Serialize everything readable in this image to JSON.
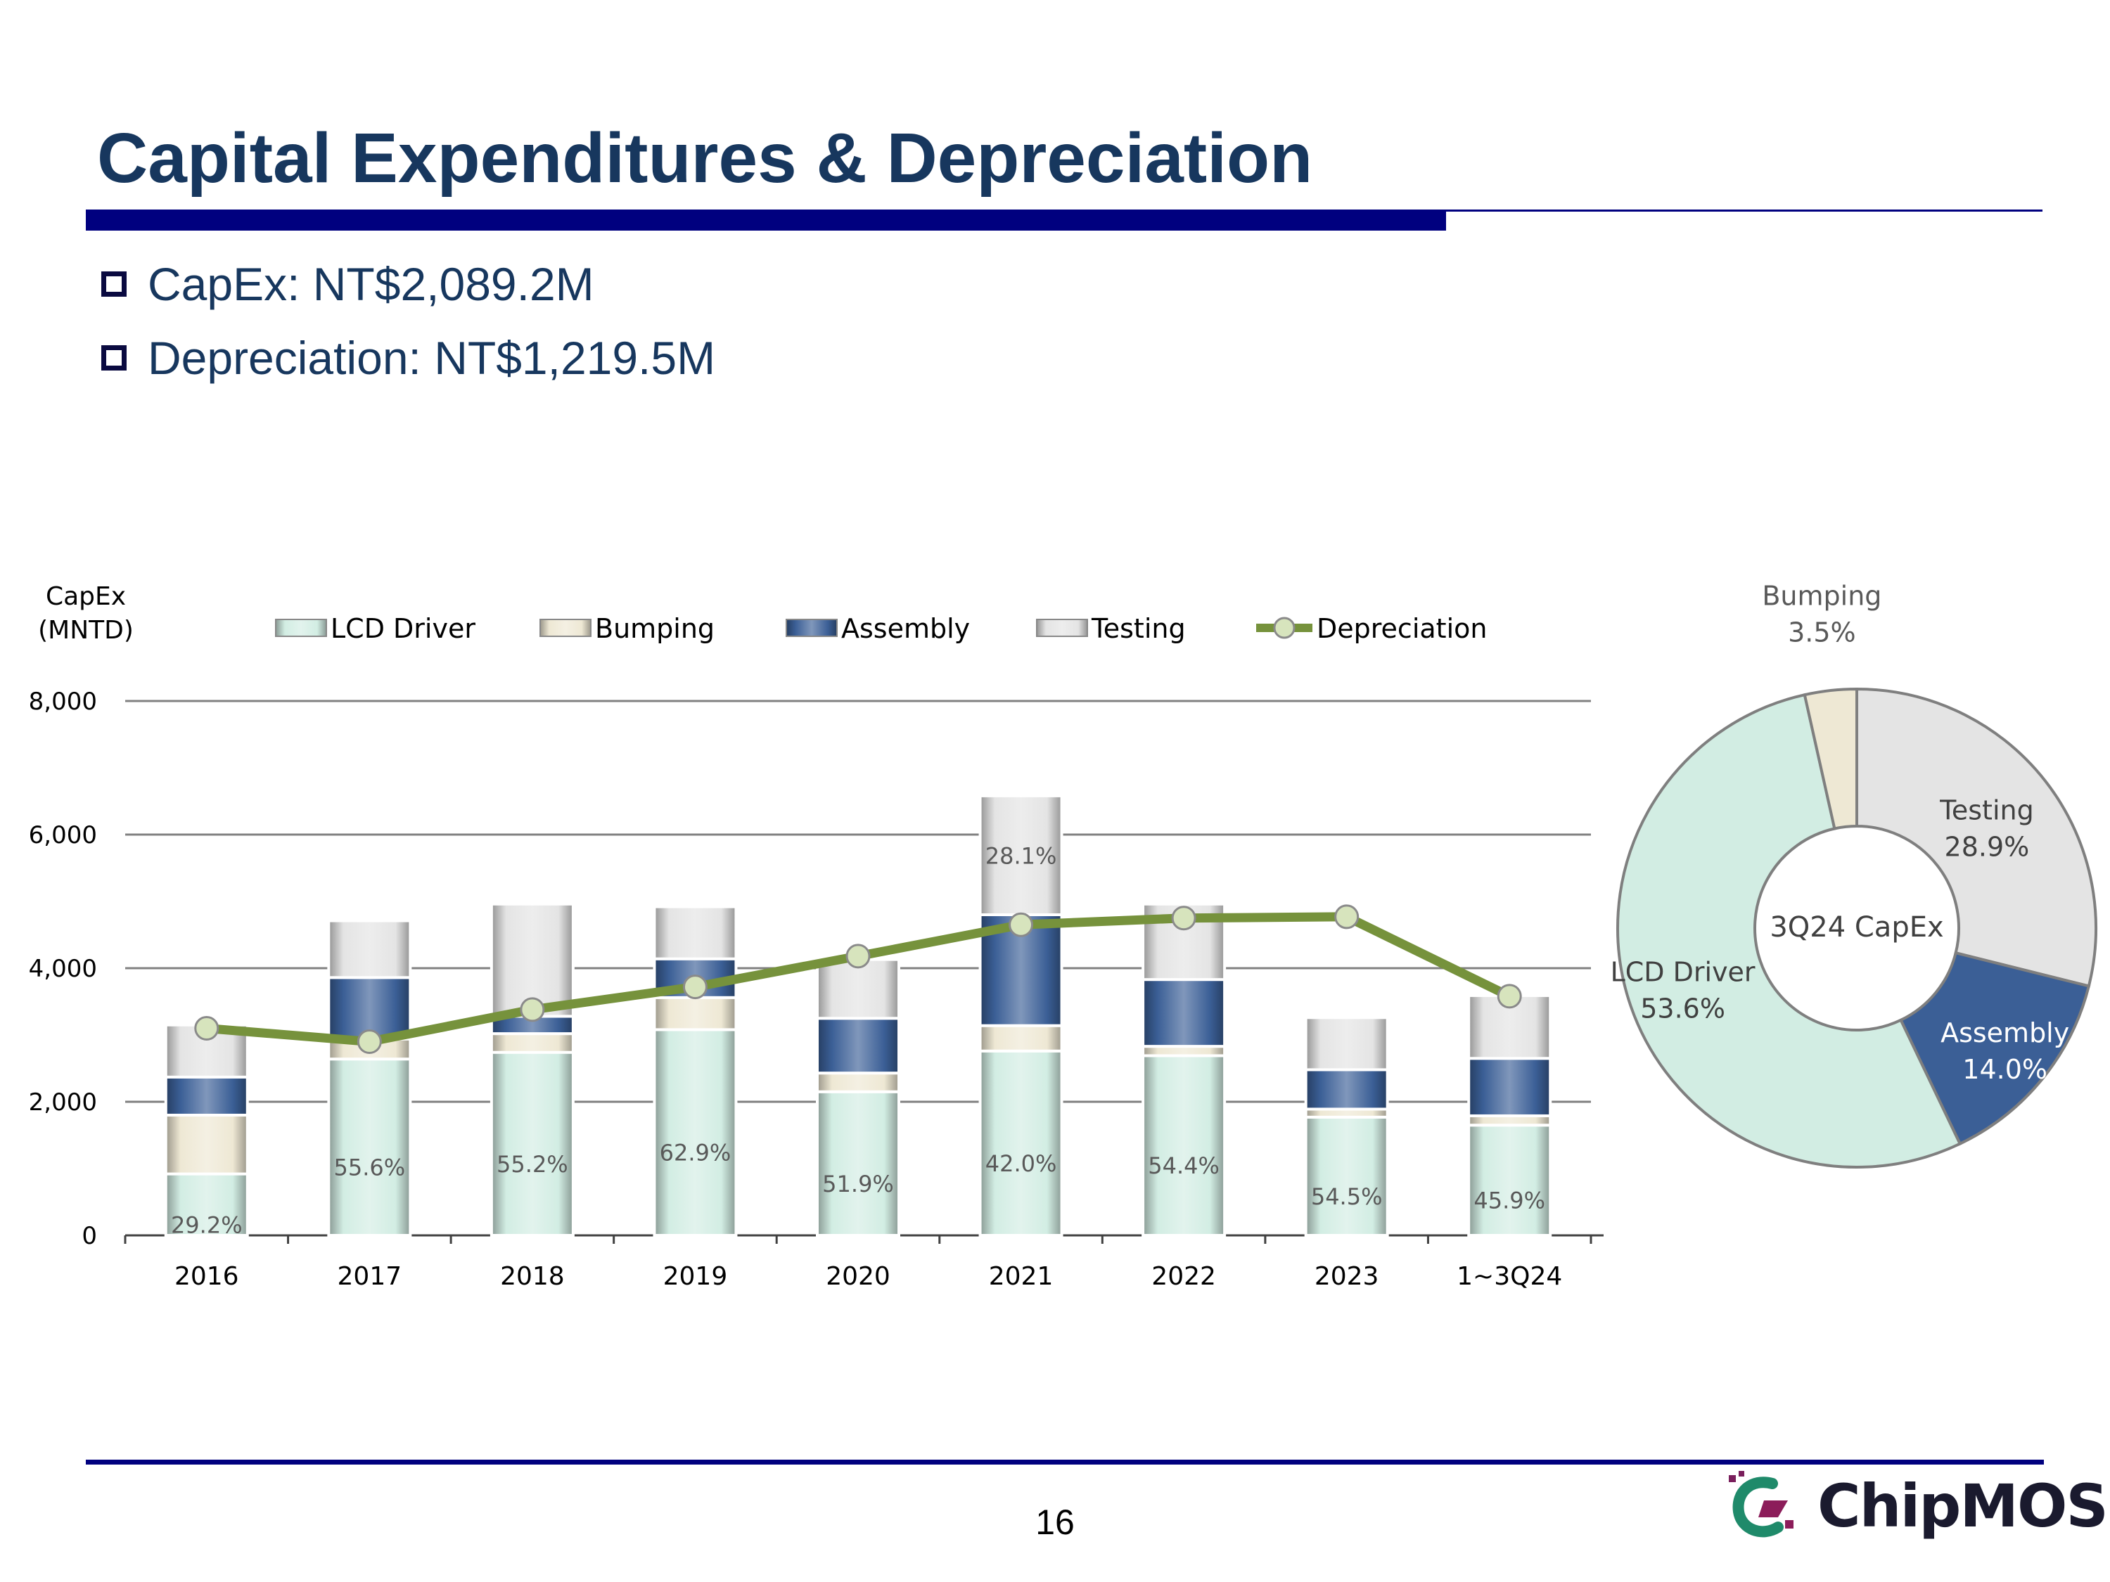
{
  "page": {
    "title": "Capital Expenditures & Depreciation",
    "bullets": [
      "CapEx: NT$2,089.2M",
      "Depreciation: NT$1,219.5M"
    ],
    "page_number": "16",
    "logo_text": "ChipMOS"
  },
  "colors": {
    "title": "#17375E",
    "rule": "#00007F",
    "lcd": "#D2EDE3",
    "bumping": "#EEE8D4",
    "assembly": "#3B5F96",
    "testing": "#E4E4E4",
    "depreciation": "#76923C",
    "dep_marker": "#D7E4BD",
    "grid": "#808080"
  },
  "chart_data": [
    {
      "type": "bar",
      "stacked": true,
      "y_axis_title": [
        "CapEx",
        "(MNTD)"
      ],
      "categories": [
        "2016",
        "2017",
        "2018",
        "2019",
        "2020",
        "2021",
        "2022",
        "2023",
        "1~3Q24"
      ],
      "ylim": [
        0,
        8000
      ],
      "yticks": [
        0,
        2000,
        4000,
        6000,
        8000
      ],
      "ytick_labels": [
        "0",
        "2,000",
        "4,000",
        "6,000",
        "8,000"
      ],
      "grid": true,
      "legend_position": "top",
      "series": [
        {
          "name": "LCD Driver",
          "key": "lcd",
          "values": [
            920,
            2640,
            2740,
            3080,
            2150,
            2760,
            2690,
            1770,
            1650
          ]
        },
        {
          "name": "Bumping",
          "key": "bumping",
          "values": [
            880,
            300,
            280,
            480,
            280,
            380,
            140,
            120,
            140
          ]
        },
        {
          "name": "Assembly",
          "key": "assembly",
          "values": [
            570,
            920,
            260,
            580,
            820,
            1660,
            1000,
            590,
            860
          ]
        },
        {
          "name": "Testing",
          "key": "testing",
          "values": [
            780,
            850,
            1680,
            780,
            880,
            1780,
            1130,
            780,
            940
          ]
        }
      ],
      "line": {
        "name": "Depreciation",
        "values": [
          3100,
          2900,
          3380,
          3720,
          4180,
          4650,
          4750,
          4770,
          3580
        ]
      },
      "bar_labels": [
        {
          "series": "LCD Driver",
          "index": 0,
          "text": "29.2%"
        },
        {
          "series": "LCD Driver",
          "index": 1,
          "text": "55.6%"
        },
        {
          "series": "LCD Driver",
          "index": 2,
          "text": "55.2%"
        },
        {
          "series": "LCD Driver",
          "index": 3,
          "text": "62.9%"
        },
        {
          "series": "LCD Driver",
          "index": 4,
          "text": "51.9%"
        },
        {
          "series": "LCD Driver",
          "index": 5,
          "text": "42.0%"
        },
        {
          "series": "LCD Driver",
          "index": 6,
          "text": "54.4%"
        },
        {
          "series": "LCD Driver",
          "index": 7,
          "text": "54.5%"
        },
        {
          "series": "LCD Driver",
          "index": 8,
          "text": "45.9%"
        },
        {
          "series": "Testing",
          "index": 5,
          "text": "28.1%"
        }
      ]
    },
    {
      "type": "pie",
      "donut": true,
      "center_label": "3Q24 CapEx",
      "slices": [
        {
          "name": "Testing",
          "value": 28.9,
          "label": "28.9%",
          "key": "testing"
        },
        {
          "name": "Assembly",
          "value": 14.0,
          "label": "14.0%",
          "key": "assembly"
        },
        {
          "name": "LCD Driver",
          "value": 53.6,
          "label": "53.6%",
          "key": "lcd"
        },
        {
          "name": "Bumping",
          "value": 3.5,
          "label": "3.5%",
          "key": "bumping"
        }
      ]
    }
  ]
}
